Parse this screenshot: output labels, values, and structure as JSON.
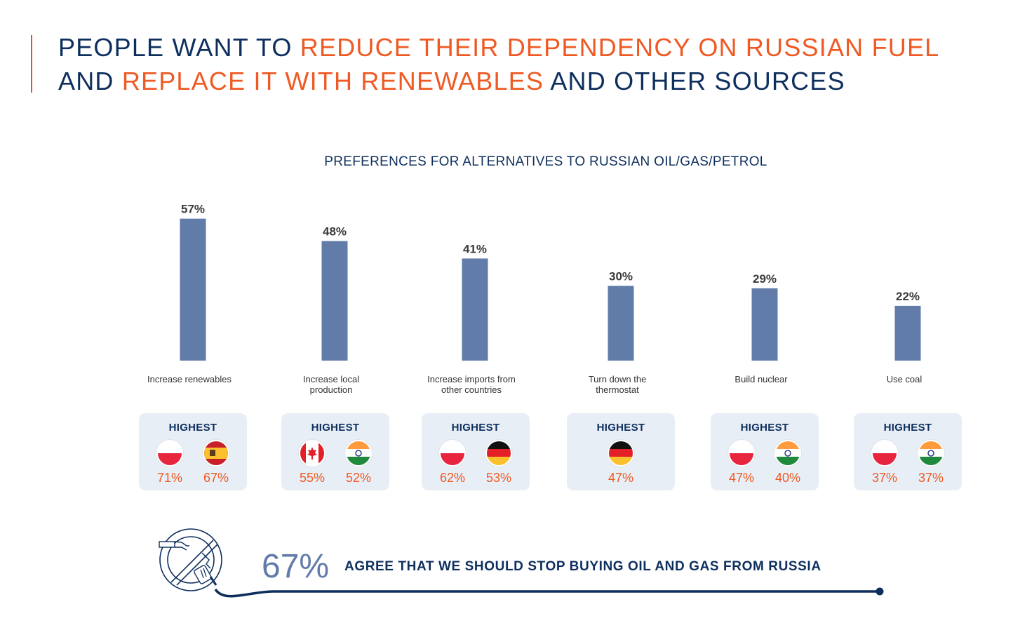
{
  "headline": {
    "segments": [
      {
        "text": "PEOPLE WANT TO ",
        "highlight": false
      },
      {
        "text": "REDUCE THEIR DEPENDENCY ON RUSSIAN FUEL",
        "highlight": true
      },
      {
        "text": "AND ",
        "highlight": false,
        "newline": true
      },
      {
        "text": "REPLACE IT WITH RENEWABLES",
        "highlight": true
      },
      {
        "text": " AND OTHER SOURCES",
        "highlight": false
      }
    ]
  },
  "colors": {
    "navy": "#0e2f5e",
    "orange": "#ef5a24",
    "bar": "#617ca8",
    "card_bg": "#e8eef5"
  },
  "chart_data": {
    "type": "bar",
    "title": "PREFERENCES FOR ALTERNATIVES TO RUSSIAN OIL/GAS/PETROL",
    "categories": [
      [
        "Increase  renewables"
      ],
      [
        "Increase local",
        "production"
      ],
      [
        "Increase imports from",
        "other countries"
      ],
      [
        "Turn down the",
        "thermostat"
      ],
      [
        "Build nuclear"
      ],
      [
        "Use coal"
      ]
    ],
    "values": [
      57,
      48,
      41,
      30,
      29,
      22
    ],
    "value_labels": [
      "57%",
      "48%",
      "41%",
      "30%",
      "29%",
      "22%"
    ],
    "unit": "%",
    "ylim": [
      0,
      60
    ],
    "grid": false,
    "xlabel": "",
    "ylabel": ""
  },
  "highest_cards": [
    {
      "title": "HIGHEST",
      "items": [
        {
          "country": "Poland",
          "flag": "poland-flag",
          "value": "71%"
        },
        {
          "country": "Spain",
          "flag": "spain-flag",
          "value": "67%"
        }
      ]
    },
    {
      "title": "HIGHEST",
      "items": [
        {
          "country": "Canada",
          "flag": "canada-flag",
          "value": "55%"
        },
        {
          "country": "India",
          "flag": "india-flag",
          "value": "52%"
        }
      ]
    },
    {
      "title": "HIGHEST",
      "items": [
        {
          "country": "Poland",
          "flag": "poland-flag",
          "value": "62%"
        },
        {
          "country": "Germany",
          "flag": "germany-flag",
          "value": "53%"
        }
      ]
    },
    {
      "title": "HIGHEST",
      "items": [
        {
          "country": "Germany",
          "flag": "germany-flag",
          "value": "47%"
        }
      ]
    },
    {
      "title": "HIGHEST",
      "items": [
        {
          "country": "Poland",
          "flag": "poland-flag",
          "value": "47%"
        },
        {
          "country": "India",
          "flag": "india-flag",
          "value": "40%"
        }
      ]
    },
    {
      "title": "HIGHEST",
      "items": [
        {
          "country": "Poland",
          "flag": "poland-flag",
          "value": "37%"
        },
        {
          "country": "India",
          "flag": "india-flag",
          "value": "37%"
        }
      ]
    }
  ],
  "footer": {
    "icon": "no-fuel-pump-icon",
    "percent": "67%",
    "statement": "AGREE THAT WE SHOULD STOP BUYING OIL AND GAS FROM RUSSIA"
  }
}
